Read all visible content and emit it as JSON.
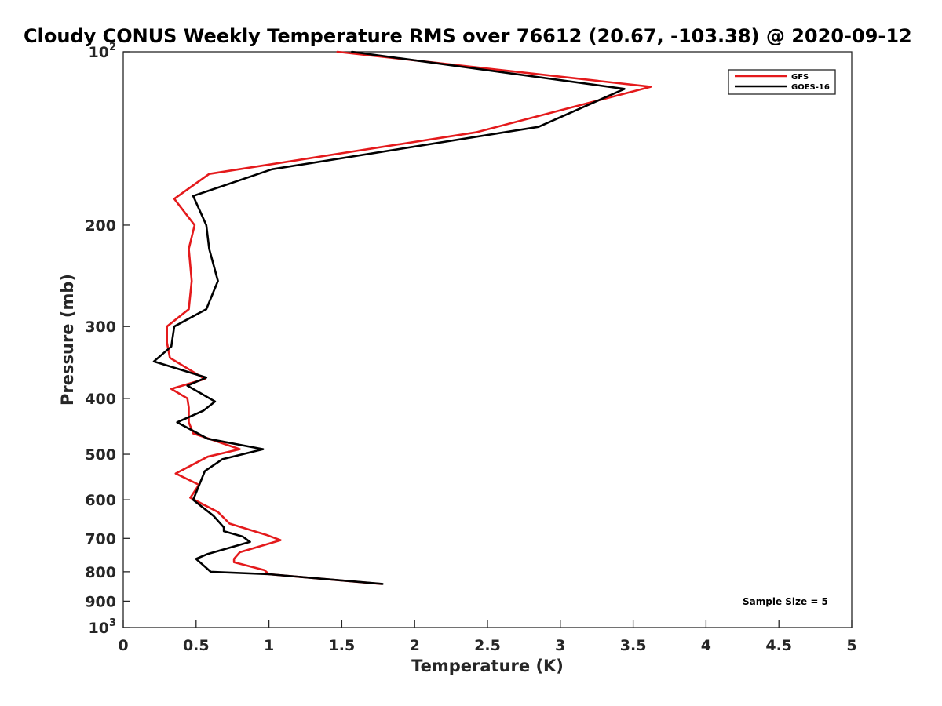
{
  "chart_data": {
    "type": "line",
    "title": "Cloudy CONUS Weekly Temperature RMS over 76612 (20.67, -103.38) @ 2020-09-12",
    "xlabel": "Temperature (K)",
    "ylabel": "Pressure (mb)",
    "xlim": [
      0,
      5
    ],
    "ylim": [
      100,
      1000
    ],
    "yscale": "log",
    "y_reversed": true,
    "x_ticks": [
      "0",
      "0.5",
      "1",
      "1.5",
      "2",
      "2.5",
      "3",
      "3.5",
      "4",
      "4.5",
      "5"
    ],
    "y_ticks": [
      {
        "value": 100,
        "base": "10",
        "exp": "2"
      },
      {
        "value": 200,
        "label": "200"
      },
      {
        "value": 300,
        "label": "300"
      },
      {
        "value": 400,
        "label": "400"
      },
      {
        "value": 500,
        "label": "500"
      },
      {
        "value": 600,
        "label": "600"
      },
      {
        "value": 700,
        "label": "700"
      },
      {
        "value": 800,
        "label": "800"
      },
      {
        "value": 900,
        "label": "900"
      },
      {
        "value": 1000,
        "base": "10",
        "exp": "3"
      }
    ],
    "legend_position": "top-right",
    "annotation": "Sample Size = 5",
    "series": [
      {
        "name": "GFS",
        "color": "#e41a1c",
        "points": [
          [
            1.47,
            100
          ],
          [
            3.62,
            115
          ],
          [
            2.42,
            138
          ],
          [
            0.59,
            163
          ],
          [
            0.35,
            180
          ],
          [
            0.49,
            200
          ],
          [
            0.45,
            220
          ],
          [
            0.47,
            250
          ],
          [
            0.45,
            280
          ],
          [
            0.3,
            300
          ],
          [
            0.3,
            320
          ],
          [
            0.32,
            340
          ],
          [
            0.56,
            370
          ],
          [
            0.33,
            385
          ],
          [
            0.44,
            400
          ],
          [
            0.45,
            415
          ],
          [
            0.45,
            440
          ],
          [
            0.48,
            460
          ],
          [
            0.8,
            490
          ],
          [
            0.58,
            505
          ],
          [
            0.36,
            540
          ],
          [
            0.52,
            565
          ],
          [
            0.46,
            595
          ],
          [
            0.65,
            630
          ],
          [
            0.73,
            660
          ],
          [
            0.98,
            690
          ],
          [
            1.08,
            705
          ],
          [
            0.8,
            740
          ],
          [
            0.76,
            760
          ],
          [
            0.76,
            770
          ],
          [
            0.97,
            795
          ],
          [
            1.0,
            808
          ],
          [
            1.77,
            840
          ]
        ]
      },
      {
        "name": "GOES-16",
        "color": "#000000",
        "points": [
          [
            1.57,
            100
          ],
          [
            3.44,
            116
          ],
          [
            2.85,
            135
          ],
          [
            1.02,
            160
          ],
          [
            0.48,
            178
          ],
          [
            0.57,
            200
          ],
          [
            0.59,
            220
          ],
          [
            0.65,
            250
          ],
          [
            0.57,
            280
          ],
          [
            0.35,
            300
          ],
          [
            0.33,
            325
          ],
          [
            0.21,
            345
          ],
          [
            0.57,
            368
          ],
          [
            0.44,
            380
          ],
          [
            0.63,
            405
          ],
          [
            0.55,
            420
          ],
          [
            0.37,
            440
          ],
          [
            0.58,
            470
          ],
          [
            0.96,
            490
          ],
          [
            0.68,
            510
          ],
          [
            0.56,
            535
          ],
          [
            0.48,
            600
          ],
          [
            0.62,
            640
          ],
          [
            0.69,
            670
          ],
          [
            0.69,
            680
          ],
          [
            0.82,
            695
          ],
          [
            0.87,
            710
          ],
          [
            0.58,
            745
          ],
          [
            0.5,
            760
          ],
          [
            0.6,
            800
          ],
          [
            1.0,
            808
          ],
          [
            1.78,
            840
          ]
        ]
      }
    ]
  }
}
